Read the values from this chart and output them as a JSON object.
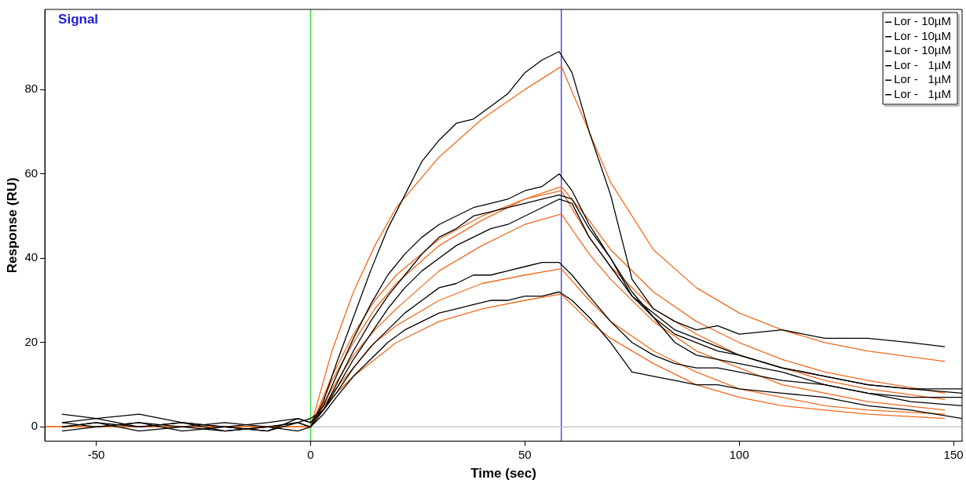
{
  "chart_data": {
    "type": "line",
    "title": "Signal",
    "xlabel": "Time (sec)",
    "ylabel": "Response (RU)",
    "xlim": [
      -62,
      152
    ],
    "xticks": [
      -50,
      0,
      50,
      100,
      150
    ],
    "ylim": [
      -3.4,
      99
    ],
    "yticks": [
      0,
      20,
      40,
      60,
      80
    ],
    "grid": false,
    "legend": "top right",
    "marker": "none",
    "line_style": "solid",
    "ref_lines": [
      {
        "axis": "x",
        "value": 0,
        "color": "#33dd33"
      },
      {
        "axis": "x",
        "value": 58.5,
        "color": "#3333ee"
      },
      {
        "axis": "y",
        "value": 0,
        "color": "#c0c0c0"
      }
    ],
    "series": [
      {
        "name": "Lor - 10µM",
        "color": "#000000",
        "x": [
          -58,
          -50,
          -40,
          -30,
          -20,
          -10,
          -3,
          0,
          3,
          6,
          10,
          14,
          18,
          22,
          26,
          30,
          34,
          38,
          42,
          46,
          50,
          54,
          58,
          61,
          65,
          70,
          75,
          80,
          85,
          90,
          95,
          100,
          110,
          120,
          130,
          140,
          148
        ],
        "values": [
          1,
          2,
          0,
          1,
          -1,
          0,
          1,
          0,
          6,
          15,
          26,
          37,
          47,
          55,
          63,
          68,
          72,
          73,
          76,
          79,
          84,
          87,
          89,
          84,
          70,
          55,
          35,
          28,
          25,
          23,
          24,
          22,
          23,
          21,
          21,
          20,
          19
        ]
      },
      {
        "name": "Lor - 10µM",
        "color": "#000000",
        "x": [
          -58,
          -50,
          -40,
          -30,
          -20,
          -10,
          -3,
          0,
          3,
          6,
          10,
          14,
          18,
          22,
          26,
          30,
          34,
          38,
          42,
          46,
          50,
          54,
          58,
          61,
          65,
          70,
          75,
          80,
          85,
          90,
          95,
          100,
          110,
          120,
          130,
          140,
          152
        ],
        "values": [
          3,
          2,
          3,
          1,
          0,
          -1,
          2,
          1,
          5,
          12,
          21,
          29,
          36,
          41,
          45,
          48,
          50,
          52,
          53,
          54,
          56,
          57,
          60,
          56,
          48,
          40,
          32,
          26,
          22,
          20,
          18,
          17,
          14,
          12,
          10,
          9,
          8
        ]
      },
      {
        "name": "Lor - 10µM",
        "color": "#000000",
        "x": [
          -58,
          -50,
          -40,
          -30,
          -20,
          -10,
          -3,
          0,
          3,
          6,
          10,
          14,
          18,
          22,
          26,
          30,
          34,
          38,
          42,
          46,
          50,
          54,
          58,
          61,
          65,
          70,
          75,
          80,
          85,
          90,
          95,
          100,
          110,
          120,
          130,
          140,
          152
        ],
        "values": [
          0,
          1,
          -1,
          0,
          1,
          0,
          -1,
          0,
          4,
          10,
          18,
          25,
          31,
          36,
          41,
          45,
          47,
          50,
          51,
          52,
          53,
          54,
          55,
          54,
          47,
          40,
          31,
          26,
          20,
          17,
          16,
          15,
          13,
          10,
          8,
          6,
          5
        ]
      },
      {
        "name": "Lor -   1µM",
        "color": "#000000",
        "x": [
          -58,
          -50,
          -40,
          -30,
          -20,
          -10,
          -3,
          0,
          3,
          6,
          10,
          14,
          18,
          22,
          26,
          30,
          34,
          38,
          42,
          46,
          50,
          54,
          58,
          61,
          65,
          70,
          75,
          80,
          85,
          90,
          95,
          100,
          110,
          120,
          130,
          140,
          152
        ],
        "values": [
          1,
          0,
          1,
          -1,
          0,
          1,
          2,
          1,
          4,
          9,
          16,
          22,
          28,
          33,
          37,
          40,
          43,
          45,
          47,
          48,
          50,
          52,
          54,
          53,
          45,
          38,
          31,
          27,
          23,
          21,
          19,
          17,
          14,
          12,
          10,
          9,
          9
        ]
      },
      {
        "name": "Lor -   1µM",
        "color": "#000000",
        "x": [
          -58,
          -50,
          -40,
          -30,
          -20,
          -10,
          -3,
          0,
          3,
          6,
          10,
          14,
          18,
          22,
          26,
          30,
          34,
          38,
          42,
          46,
          50,
          54,
          58,
          61,
          65,
          70,
          75,
          80,
          85,
          90,
          95,
          100,
          110,
          120,
          130,
          140,
          152
        ],
        "values": [
          0,
          1,
          0,
          1,
          0,
          -1,
          1,
          2,
          4,
          8,
          14,
          19,
          23,
          27,
          30,
          33,
          34,
          36,
          36,
          37,
          38,
          39,
          39,
          36,
          31,
          25,
          20,
          17,
          15,
          14,
          14,
          13,
          11,
          10,
          8,
          7,
          7
        ]
      },
      {
        "name": "Lor -   1µM",
        "color": "#000000",
        "x": [
          -58,
          -50,
          -40,
          -30,
          -20,
          -10,
          -3,
          0,
          3,
          6,
          10,
          14,
          18,
          22,
          26,
          30,
          34,
          38,
          42,
          46,
          50,
          54,
          58,
          61,
          65,
          70,
          75,
          80,
          85,
          90,
          95,
          100,
          110,
          120,
          130,
          140,
          152
        ],
        "values": [
          -1,
          0,
          1,
          0,
          -1,
          0,
          1,
          0,
          3,
          7,
          12,
          16,
          20,
          23,
          25,
          27,
          28,
          29,
          30,
          30,
          31,
          31,
          32,
          30,
          26,
          20,
          13,
          12,
          11,
          10,
          10,
          9,
          8,
          7,
          5,
          4,
          2
        ]
      },
      {
        "color": "#f26b1d",
        "x": [
          -62,
          0,
          5,
          10,
          15,
          20,
          30,
          40,
          50,
          58.5,
          65,
          70,
          80,
          90,
          100,
          110,
          120,
          130,
          148
        ],
        "values": [
          0,
          0,
          18,
          32,
          43,
          52,
          64,
          73,
          80,
          85.5,
          70,
          58,
          42,
          33,
          27,
          23,
          20,
          18,
          15.5
        ]
      },
      {
        "color": "#f26b1d",
        "x": [
          -62,
          0,
          5,
          10,
          15,
          20,
          30,
          40,
          50,
          58.5,
          65,
          70,
          80,
          90,
          100,
          110,
          120,
          130,
          148
        ],
        "values": [
          0,
          0,
          11,
          20,
          28,
          34,
          43,
          49,
          54,
          57,
          49,
          42,
          32,
          25,
          20,
          16,
          13,
          11,
          8
        ]
      },
      {
        "color": "#f26b1d",
        "x": [
          -62,
          0,
          5,
          10,
          15,
          20,
          30,
          40,
          50,
          58.5,
          65,
          70,
          80,
          90,
          100,
          110,
          120,
          130,
          148
        ],
        "values": [
          0,
          0,
          12,
          22,
          30,
          36,
          44.5,
          50,
          54,
          56,
          45,
          38,
          28,
          22,
          17,
          14,
          11,
          9,
          6.5
        ]
      },
      {
        "color": "#f26b1d",
        "x": [
          -62,
          0,
          5,
          10,
          15,
          20,
          30,
          40,
          50,
          58.5,
          65,
          70,
          80,
          90,
          100,
          110,
          120,
          130,
          148
        ],
        "values": [
          0,
          0,
          9,
          17,
          23,
          28,
          37,
          43,
          48,
          50.5,
          41,
          35,
          25,
          18,
          14,
          10,
          8,
          6,
          4
        ]
      },
      {
        "color": "#f26b1d",
        "x": [
          -62,
          0,
          5,
          10,
          15,
          20,
          30,
          40,
          50,
          58.5,
          65,
          70,
          80,
          90,
          100,
          110,
          120,
          130,
          148
        ],
        "values": [
          0,
          0,
          8,
          14,
          20,
          24,
          30,
          34,
          36,
          37.5,
          30,
          25,
          18,
          13,
          9,
          7,
          5,
          4,
          3
        ]
      },
      {
        "color": "#f26b1d",
        "x": [
          -62,
          0,
          5,
          10,
          15,
          20,
          30,
          40,
          50,
          58.5,
          65,
          70,
          80,
          90,
          100,
          110,
          120,
          130,
          148
        ],
        "values": [
          0,
          0,
          7,
          12,
          16,
          20,
          25,
          28,
          30,
          31.5,
          25,
          21,
          15,
          10,
          7,
          5,
          4,
          3,
          2
        ]
      }
    ]
  }
}
